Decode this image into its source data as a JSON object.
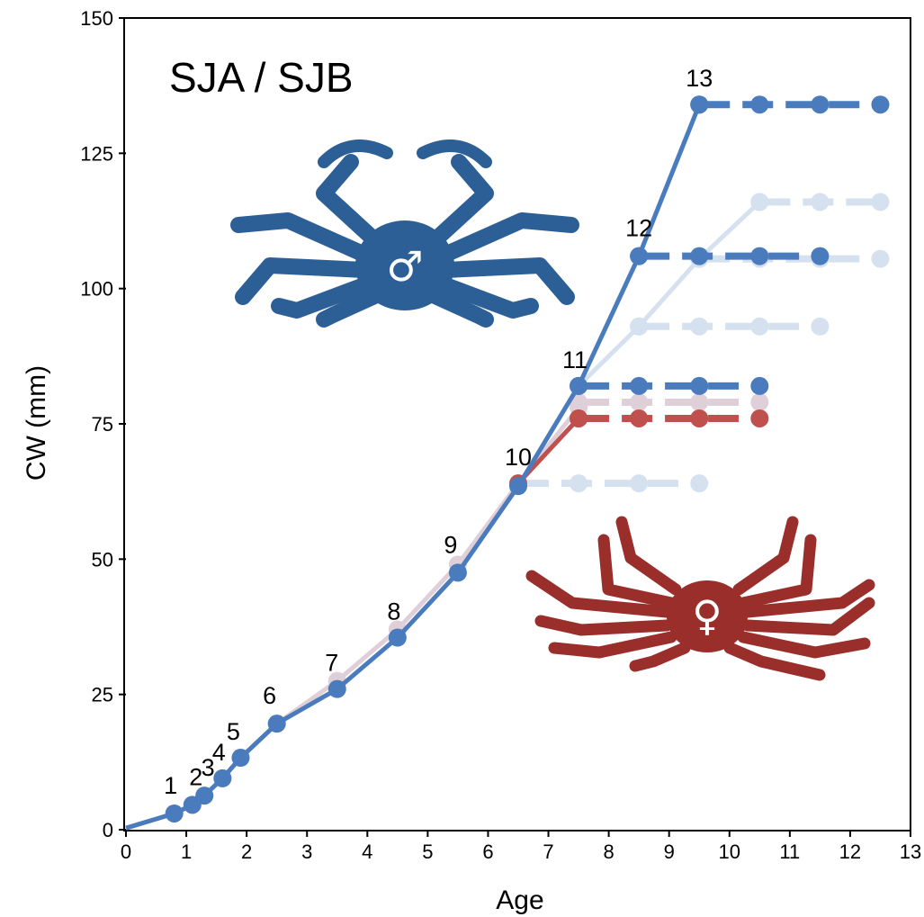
{
  "chart_data": {
    "type": "line",
    "title": "SJA / SJB",
    "xlabel": "Age",
    "ylabel": "CW (mm)",
    "xlim": [
      0,
      13
    ],
    "ylim": [
      0,
      150
    ],
    "x_ticks": [
      "0",
      "1",
      "2",
      "3",
      "4",
      "5",
      "6",
      "7",
      "8",
      "9",
      "10",
      "11",
      "12",
      "13"
    ],
    "y_ticks": [
      "0",
      "25",
      "50",
      "75",
      "100",
      "125",
      "150"
    ],
    "grid": false,
    "legend": "none",
    "colors": {
      "male": "#4a7bbd",
      "male_faded": "#d6e1ef",
      "female": "#c0504d",
      "female_faded": "#dfcfd8",
      "growth_curve": "#5b79b4",
      "male_icon": "#2c5f96",
      "female_icon": "#992e2b"
    },
    "instar_labels": [
      {
        "text": "1",
        "x": 0.8,
        "y": 3.0
      },
      {
        "text": "2",
        "x": 1.1,
        "y": 4.6
      },
      {
        "text": "3",
        "x": 1.3,
        "y": 6.3
      },
      {
        "text": "4",
        "x": 1.6,
        "y": 9.5
      },
      {
        "text": "5",
        "x": 1.9,
        "y": 13.3
      },
      {
        "text": "6",
        "x": 2.5,
        "y": 19.6
      },
      {
        "text": "7",
        "x": 3.5,
        "y": 26.0
      },
      {
        "text": "8",
        "x": 4.5,
        "y": 35.5
      },
      {
        "text": "9",
        "x": 5.5,
        "y": 47.5
      },
      {
        "text": "10",
        "x": 6.5,
        "y": 64.0
      },
      {
        "text": "11",
        "x": 7.5,
        "y": 82.0
      },
      {
        "text": "12",
        "x": 8.5,
        "y": 106.0
      },
      {
        "text": "13",
        "x": 9.5,
        "y": 134.0
      }
    ],
    "series": [
      {
        "role": "female-growth-faded",
        "style": "solid",
        "x": [
          0,
          0.8,
          1.1,
          1.3,
          1.6,
          1.9,
          2.5,
          3.5,
          4.5,
          5.5,
          6.5,
          7.5
        ],
        "y": [
          0.3,
          3.0,
          4.6,
          6.3,
          9.5,
          13.3,
          19.6,
          27.5,
          37.0,
          49.0,
          64.0,
          78.0
        ]
      },
      {
        "role": "female-growth",
        "style": "solid",
        "x": [
          6.5,
          7.5
        ],
        "y": [
          64.0,
          76.0
        ]
      },
      {
        "role": "female-terminal",
        "style": "dashed",
        "x": [
          7.5,
          8.5,
          9.5,
          10.5
        ],
        "y": [
          76.0,
          76.0,
          76.0,
          76.0
        ]
      },
      {
        "role": "female-terminal-faded",
        "style": "dashed",
        "x": [
          7.5,
          8.5,
          9.5,
          10.5
        ],
        "y": [
          79.0,
          79.0,
          79.0,
          79.0
        ]
      },
      {
        "role": "male-growth",
        "style": "solid",
        "x": [
          0,
          0.8,
          1.1,
          1.3,
          1.6,
          1.9,
          2.5,
          3.5,
          4.5,
          5.5,
          6.5,
          7.5,
          8.5,
          9.5
        ],
        "y": [
          0.3,
          3.0,
          4.6,
          6.3,
          9.5,
          13.3,
          19.6,
          26.0,
          35.5,
          47.5,
          63.5,
          82.0,
          106.0,
          134.0
        ]
      },
      {
        "role": "male-growth-faded",
        "style": "solid",
        "x": [
          7.5,
          8.5,
          9.5,
          10.5
        ],
        "y": [
          82.0,
          93.0,
          105.5,
          116.0
        ]
      },
      {
        "role": "male-terminal-10",
        "style": "dashed-faded",
        "x": [
          6.5,
          7.5,
          8.5,
          9.5
        ],
        "y": [
          64.0,
          64.0,
          64.0,
          64.0
        ]
      },
      {
        "role": "male-terminal-11",
        "style": "dashed",
        "x": [
          7.5,
          8.5,
          9.5,
          10.5
        ],
        "y": [
          82.0,
          82.0,
          82.0,
          82.0
        ]
      },
      {
        "role": "male-terminal-12-faded",
        "style": "dashed-faded",
        "x": [
          8.5,
          9.5,
          10.5,
          11.5
        ],
        "y": [
          93.0,
          93.0,
          93.0,
          93.0
        ]
      },
      {
        "role": "male-terminal-12",
        "style": "dashed",
        "x": [
          8.5,
          9.5,
          10.5,
          11.5
        ],
        "y": [
          106.0,
          106.0,
          106.0,
          106.0
        ]
      },
      {
        "role": "male-terminal-12b-faded",
        "style": "dashed-faded",
        "x": [
          9.5,
          10.5,
          11.5,
          12.5
        ],
        "y": [
          105.5,
          105.5,
          105.5,
          105.5
        ]
      },
      {
        "role": "male-terminal-13-faded",
        "style": "dashed-faded",
        "x": [
          10.5,
          11.5,
          12.5
        ],
        "y": [
          116.0,
          116.0,
          116.0
        ]
      },
      {
        "role": "male-terminal-13",
        "style": "dashed",
        "x": [
          9.5,
          10.5,
          11.5,
          12.5
        ],
        "y": [
          134.0,
          134.0,
          134.0,
          134.0
        ]
      }
    ],
    "icons": [
      {
        "name": "male-crab-icon",
        "symbol": "♂"
      },
      {
        "name": "female-crab-icon",
        "symbol": "♀"
      }
    ]
  }
}
